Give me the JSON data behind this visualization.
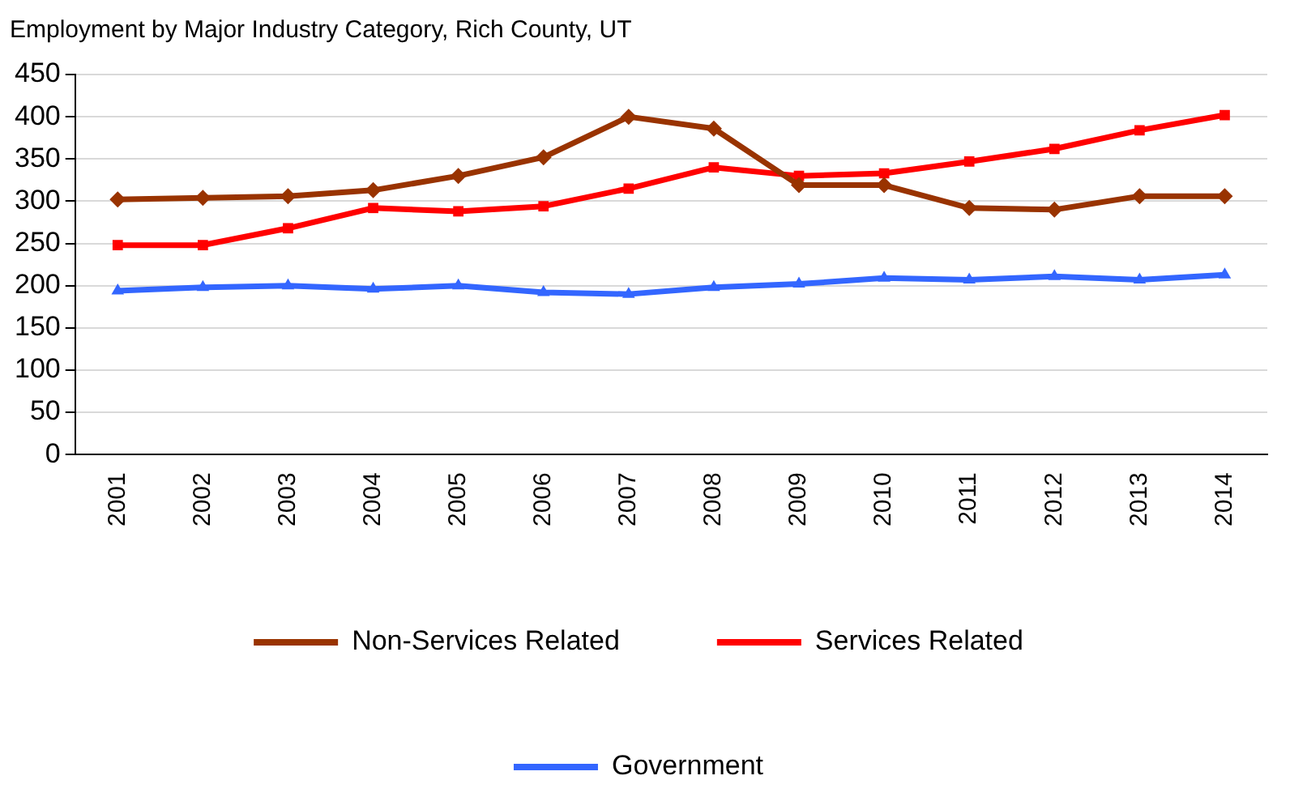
{
  "chart_data": {
    "type": "line",
    "title": "Employment by Major Industry Category, Rich County, UT",
    "categories": [
      "2001",
      "2002",
      "2003",
      "2004",
      "2005",
      "2006",
      "2007",
      "2008",
      "2009",
      "2010",
      "2011",
      "2012",
      "2013",
      "2014"
    ],
    "series": [
      {
        "name": "Non-Services Related",
        "color": "#993300",
        "marker": "diamond",
        "values": [
          302,
          304,
          306,
          313,
          330,
          352,
          400,
          386,
          319,
          319,
          292,
          290,
          306,
          306
        ]
      },
      {
        "name": "Services Related",
        "color": "#ff0000",
        "marker": "square",
        "values": [
          248,
          248,
          268,
          292,
          288,
          294,
          315,
          340,
          330,
          333,
          347,
          362,
          384,
          402
        ]
      },
      {
        "name": "Government",
        "color": "#3366ff",
        "marker": "triangle",
        "values": [
          194,
          198,
          200,
          196,
          200,
          192,
          190,
          198,
          202,
          209,
          207,
          211,
          207,
          213
        ]
      }
    ],
    "ylim": [
      0,
      450
    ],
    "yticks": [
      0,
      50,
      100,
      150,
      200,
      250,
      300,
      350,
      400,
      450
    ],
    "grid": "y",
    "legend": "bottom",
    "line_style": "solid"
  }
}
